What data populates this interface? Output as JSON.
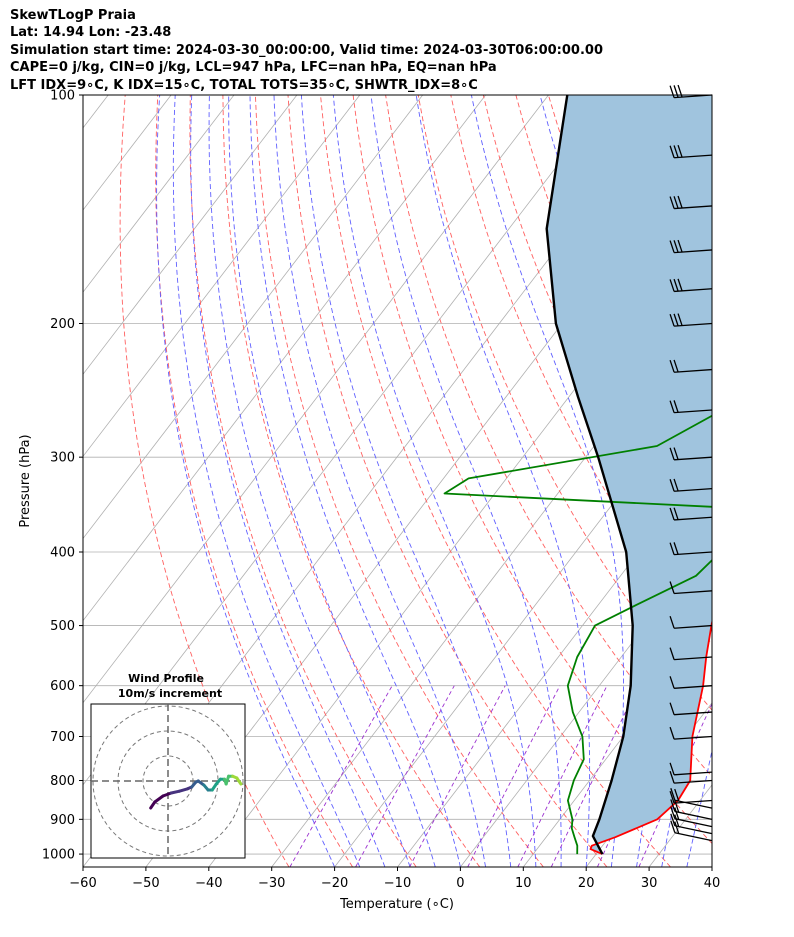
{
  "header": {
    "line1": "SkewTLogP Praia",
    "line2": "Lat: 14.94   Lon: -23.48",
    "line3": "Simulation start time: 2024-03-30_00:00:00, Valid time: 2024-03-30T06:00:00.00",
    "line4": "CAPE=0 j/kg, CIN=0 j/kg, LCL=947 hPa, LFC=nan hPa, EQ=nan hPa",
    "line5": "LFT IDX=9∘C, K IDX=15∘C, TOTAL TOTS=35∘C, SHWTR_IDX=8∘C"
  },
  "chart_data": {
    "type": "skewt-logp",
    "title": "SkewTLogP Praia",
    "xlabel": "Temperature (∘C)",
    "ylabel": "Pressure (hPa)",
    "xlim": [
      -60,
      40
    ],
    "ylim": [
      1040,
      100
    ],
    "y_scale": "log",
    "x_ticks": [
      -60,
      -50,
      -40,
      -30,
      -20,
      -10,
      0,
      10,
      20,
      30,
      40
    ],
    "x_tick_labels": [
      "−60",
      "−50",
      "−40",
      "−30",
      "−20",
      "−10",
      "0",
      "10",
      "20",
      "30",
      "40"
    ],
    "y_ticks": [
      1000,
      900,
      800,
      700,
      600,
      500,
      400,
      300,
      200,
      100
    ],
    "y_tick_labels": [
      "1000",
      "900",
      "800",
      "700",
      "600",
      "500",
      "400",
      "300",
      "200",
      "100"
    ],
    "grid": true,
    "series": [
      {
        "role": "temperature",
        "color": "#ff0000",
        "points": [
          [
            1000,
            21
          ],
          [
            985,
            18.5
          ],
          [
            975,
            18.3
          ],
          [
            950,
            21
          ],
          [
            900,
            25.5
          ],
          [
            850,
            26.5
          ],
          [
            800,
            26
          ],
          [
            700,
            21
          ],
          [
            600,
            16.5
          ],
          [
            550,
            13.5
          ],
          [
            500,
            10.5
          ],
          [
            450,
            7.5
          ],
          [
            400,
            5
          ],
          [
            350,
            4
          ],
          [
            300,
            3
          ],
          [
            250,
            0
          ],
          [
            200,
            -6
          ],
          [
            170,
            -10
          ],
          [
            150,
            -12
          ],
          [
            130,
            -13
          ],
          [
            120,
            -14
          ],
          [
            110,
            -14
          ],
          [
            100,
            -15
          ]
        ]
      },
      {
        "role": "dewpoint",
        "color": "#008000",
        "points": [
          [
            1000,
            17
          ],
          [
            975,
            16
          ],
          [
            950,
            14.5
          ],
          [
            925,
            13
          ],
          [
            900,
            12
          ],
          [
            850,
            9
          ],
          [
            800,
            7.5
          ],
          [
            750,
            6.5
          ],
          [
            700,
            3.5
          ],
          [
            650,
            -1
          ],
          [
            600,
            -5
          ],
          [
            550,
            -7
          ],
          [
            500,
            -8
          ],
          [
            470,
            -4
          ],
          [
            430,
            2
          ],
          [
            400,
            3
          ],
          [
            370,
            3
          ],
          [
            350,
            0
          ],
          [
            335,
            -48
          ],
          [
            320,
            -46
          ],
          [
            290,
            -20
          ],
          [
            260,
            -14
          ],
          [
            240,
            -10
          ],
          [
            220,
            -11
          ],
          [
            200,
            -12
          ],
          [
            185,
            -13
          ],
          [
            170,
            -10
          ],
          [
            150,
            -10
          ],
          [
            130,
            -10
          ],
          [
            115,
            -8
          ],
          [
            100,
            -4
          ]
        ]
      },
      {
        "role": "parcel",
        "color": "#000000",
        "points": [
          [
            1000,
            21
          ],
          [
            947,
            17.3
          ],
          [
            900,
            16.3
          ],
          [
            800,
            13.5
          ],
          [
            700,
            10
          ],
          [
            600,
            5
          ],
          [
            500,
            -2
          ],
          [
            400,
            -12
          ],
          [
            300,
            -28
          ],
          [
            250,
            -38.5
          ],
          [
            200,
            -51
          ],
          [
            150,
            -64
          ],
          [
            100,
            -77
          ]
        ]
      }
    ],
    "shaded_region": {
      "between": [
        "parcel",
        "temperature"
      ],
      "color": "#a0c4de"
    },
    "reference_lines": {
      "isotherms_color": "#b0b0b0",
      "dry_adiabats_color": "#ff6060",
      "moist_adiabats_color": "#6060ff",
      "mixing_ratio_color": "#9b30d0"
    },
    "wind_barbs": {
      "color": "#000000",
      "levels": [
        [
          100,
          20,
          3
        ],
        [
          120,
          30,
          3
        ],
        [
          140,
          30,
          3
        ],
        [
          160,
          20,
          3
        ],
        [
          180,
          20,
          3
        ],
        [
          200,
          30,
          3
        ],
        [
          230,
          25,
          2
        ],
        [
          260,
          25,
          2
        ],
        [
          300,
          25,
          2
        ],
        [
          330,
          25,
          2
        ],
        [
          360,
          25,
          2
        ],
        [
          400,
          25,
          2
        ],
        [
          450,
          20,
          1
        ],
        [
          500,
          15,
          1
        ],
        [
          550,
          12,
          1
        ],
        [
          600,
          12,
          1
        ],
        [
          650,
          12,
          1
        ],
        [
          700,
          15,
          1
        ],
        [
          780,
          15,
          1
        ],
        [
          800,
          20,
          1
        ],
        [
          850,
          25,
          1
        ],
        [
          870,
          80,
          2
        ],
        [
          900,
          80,
          2
        ],
        [
          920,
          80,
          2
        ],
        [
          940,
          80,
          2
        ],
        [
          960,
          80,
          2
        ]
      ]
    },
    "hodograph": {
      "title": "Wind Profile",
      "subtitle": "10m/s increment",
      "ring_count": 3,
      "path": [
        [
          -1.5,
          -4
        ],
        [
          -1,
          -3
        ],
        [
          0,
          -2
        ],
        [
          1,
          -1.5
        ],
        [
          2,
          -1.2
        ],
        [
          3,
          -0.8
        ],
        [
          3.5,
          -0.5
        ],
        [
          4.0,
          0.3
        ],
        [
          4.3,
          0.5
        ],
        [
          5.0,
          -0.2
        ],
        [
          5.5,
          -1.0
        ],
        [
          6.0,
          -1.0
        ],
        [
          6.5,
          0.0
        ],
        [
          7.0,
          0.8
        ],
        [
          7.5,
          0.8
        ],
        [
          7.7,
          0.0
        ],
        [
          8.0,
          1.3
        ],
        [
          8.5,
          1.3
        ],
        [
          9.0,
          1.0
        ],
        [
          9.5,
          0.0
        ]
      ],
      "colors": [
        "#440154",
        "#46337e",
        "#365c8d",
        "#277f8e",
        "#1fa187",
        "#4ac16d",
        "#9fda3a"
      ]
    }
  }
}
